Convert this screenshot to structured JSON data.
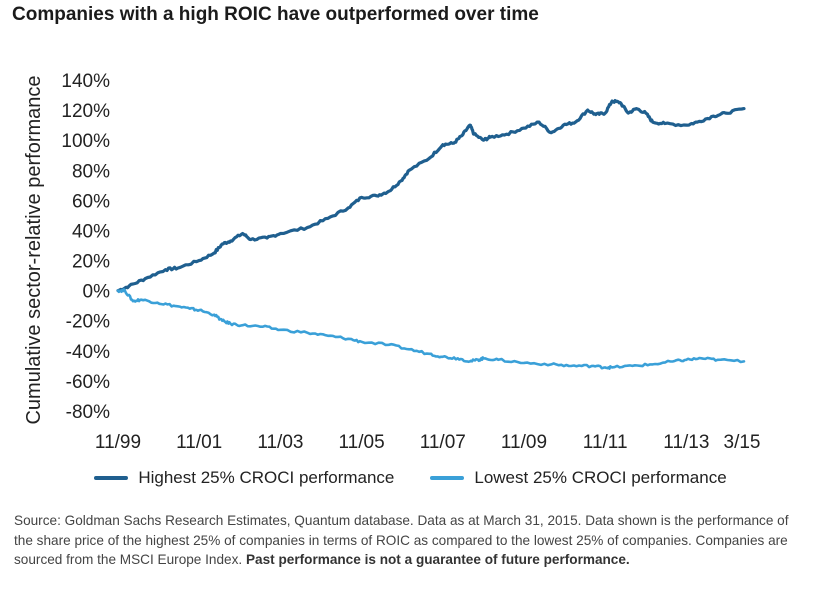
{
  "title": "Companies with a high ROIC have outperformed over time",
  "source_text": "Source: Goldman Sachs Research Estimates, Quantum database. Data as at March 31, 2015. Data shown is the performance of the share price of the highest 25% of companies in terms of ROIC as compared to the lowest 25% of companies. Companies are sourced from the MSCI Europe Index.",
  "source_bold": "Past performance is not a guarantee of future performance.",
  "colors": {
    "highest": "#1f5f8f",
    "lowest": "#3aa0d8"
  },
  "chart_data": {
    "type": "line",
    "title": "Companies with a high ROIC have outperformed over time",
    "ylabel": "Cumulative sector-relative performance",
    "xlabel": "",
    "ylim": [
      -80,
      140
    ],
    "y_ticks": [
      "140%",
      "120%",
      "100%",
      "80%",
      "60%",
      "40%",
      "20%",
      "0%",
      "-20%",
      "-40%",
      "-60%",
      "-80%"
    ],
    "x_ticks": [
      "11/99",
      "11/01",
      "11/03",
      "11/05",
      "11/07",
      "11/09",
      "11/11",
      "11/13",
      "3/15"
    ],
    "x_range": [
      1999.83,
      2015.25
    ],
    "grid": false,
    "legend_position": "bottom",
    "series": [
      {
        "name": "Highest 25% CROCI performance",
        "x": [
          1999.83,
          2000.1,
          2000.5,
          2001.0,
          2001.3,
          2001.83,
          2002.2,
          2002.4,
          2002.6,
          2002.9,
          2003.1,
          2003.5,
          2003.83,
          2004.5,
          2005.0,
          2005.5,
          2005.83,
          2006.2,
          2006.5,
          2006.8,
          2007.0,
          2007.5,
          2007.83,
          2008.1,
          2008.3,
          2008.5,
          2008.6,
          2008.83,
          2009.0,
          2009.4,
          2009.83,
          2010.2,
          2010.5,
          2010.8,
          2011.1,
          2011.4,
          2011.6,
          2011.83,
          2012.0,
          2012.2,
          2012.4,
          2012.6,
          2012.83,
          2013.0,
          2013.3,
          2013.83,
          2014.1,
          2014.5,
          2014.8,
          2015.25
        ],
        "values": [
          0,
          3,
          8,
          14,
          15,
          20,
          25,
          31,
          33,
          38,
          34,
          35,
          38,
          42,
          48,
          55,
          62,
          63,
          66,
          73,
          80,
          88,
          97,
          98,
          103,
          110,
          104,
          100,
          102,
          104,
          108,
          112,
          105,
          110,
          112,
          120,
          117,
          118,
          126,
          125,
          118,
          121,
          118,
          112,
          111,
          110,
          112,
          116,
          118,
          121
        ]
      },
      {
        "name": "Lowest 25% CROCI performance",
        "x": [
          1999.83,
          2000.0,
          2000.2,
          2000.4,
          2000.8,
          2001.2,
          2001.6,
          2001.83,
          2002.2,
          2002.4,
          2002.6,
          2002.9,
          2003.4,
          2003.83,
          2004.5,
          2005.0,
          2005.5,
          2005.83,
          2006.5,
          2007.0,
          2007.5,
          2007.83,
          2008.2,
          2008.5,
          2008.7,
          2008.83,
          2009.2,
          2009.83,
          2010.5,
          2011.0,
          2011.5,
          2011.83,
          2012.0,
          2012.5,
          2013.0,
          2013.5,
          2013.83,
          2014.2,
          2014.6,
          2015.25
        ],
        "values": [
          0,
          0,
          -7,
          -6,
          -8,
          -10,
          -12,
          -13,
          -16,
          -20,
          -22,
          -23,
          -24,
          -26,
          -28,
          -30,
          -32,
          -34,
          -36,
          -39,
          -42,
          -44,
          -45,
          -47,
          -46,
          -45,
          -46,
          -48,
          -49,
          -50,
          -50,
          -51,
          -51,
          -50,
          -49,
          -47,
          -46,
          -45,
          -46,
          -47
        ]
      }
    ]
  }
}
